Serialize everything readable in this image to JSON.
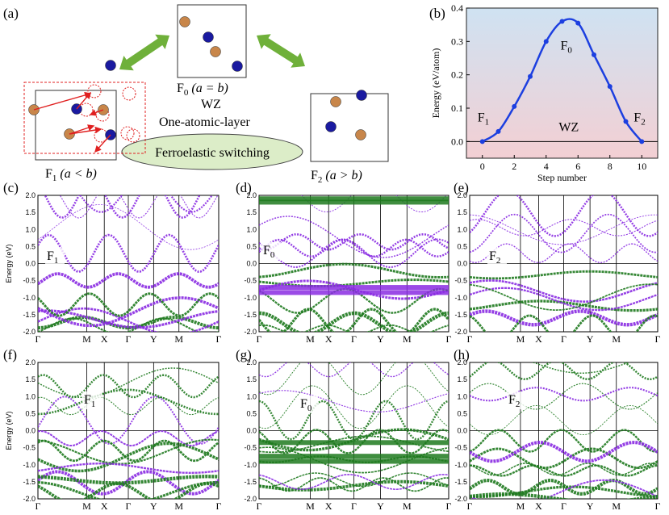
{
  "panel_labels": [
    "(a)",
    "(b)",
    "(c)",
    "(d)",
    "(e)",
    "(f)",
    "(g)",
    "(h)"
  ],
  "schematic": {
    "f0_label": "F",
    "f0_sub": "0",
    "f0_cond": " (a = b)",
    "f1_label": "F",
    "f1_sub": "1",
    "f1_cond": " (a < b)",
    "f2_label": "F",
    "f2_sub": "2",
    "f2_cond": " (a > b)",
    "wz": "WZ",
    "layer_text": "One-atomic-layer",
    "switch_text": "Ferroelastic switching",
    "colors": {
      "cation": "#c8864a",
      "anion": "#1a1aa0",
      "arrow": "#6fb03a",
      "dashed_box": "#e02020"
    }
  },
  "chart_data": [
    {
      "type": "line",
      "panel": "(b)",
      "xlabel": "Step number",
      "ylabel": "Energy (eV/atom)",
      "xlim": [
        -1,
        11
      ],
      "ylim": [
        -0.05,
        0.4
      ],
      "xticks": [
        0,
        2,
        4,
        6,
        8,
        10
      ],
      "yticks": [
        0.0,
        0.1,
        0.2,
        0.3,
        0.4
      ],
      "x": [
        0,
        1,
        2,
        3,
        4,
        5,
        6,
        7,
        8,
        9,
        10
      ],
      "y": [
        0.0,
        0.03,
        0.105,
        0.195,
        0.3,
        0.36,
        0.355,
        0.26,
        0.165,
        0.06,
        0.0
      ],
      "annotations": [
        {
          "label": "F",
          "sub": "1",
          "x": 0,
          "y": 0.06
        },
        {
          "label": "F",
          "sub": "0",
          "x": 5.2,
          "y": 0.275
        },
        {
          "label": "WZ",
          "x": 5.5,
          "y": 0.055
        },
        {
          "label": "F",
          "sub": "2",
          "x": 9.8,
          "y": 0.06
        }
      ],
      "colors": {
        "line": "#1c3fe0",
        "bg_top": "#cfe2f2",
        "bg_bottom": "#f3cfd3"
      }
    },
    {
      "type": "band_structure",
      "panels": [
        "(c)",
        "(d)",
        "(e)",
        "(f)",
        "(g)",
        "(h)"
      ],
      "ylabel": "Energy (eV)",
      "ylim": [
        -2.0,
        2.0
      ],
      "yticks": [
        "2.0",
        "1.5",
        "1.0",
        "0.5",
        "0.0",
        "-0.5",
        "-1.0",
        "-1.5",
        "-2.0"
      ],
      "kpath": [
        "Γ",
        "M",
        "X",
        "Γ",
        "Y",
        "M",
        "Γ"
      ],
      "panel_tags": [
        {
          "label": "F",
          "sub": "1"
        },
        {
          "label": "F",
          "sub": "0"
        },
        {
          "label": "F",
          "sub": "2"
        },
        {
          "label": "F",
          "sub": "1"
        },
        {
          "label": "F",
          "sub": "0"
        },
        {
          "label": "F",
          "sub": "2"
        }
      ],
      "colors": {
        "purple": "#8a2be2",
        "green": "#1f7a1f"
      }
    }
  ]
}
